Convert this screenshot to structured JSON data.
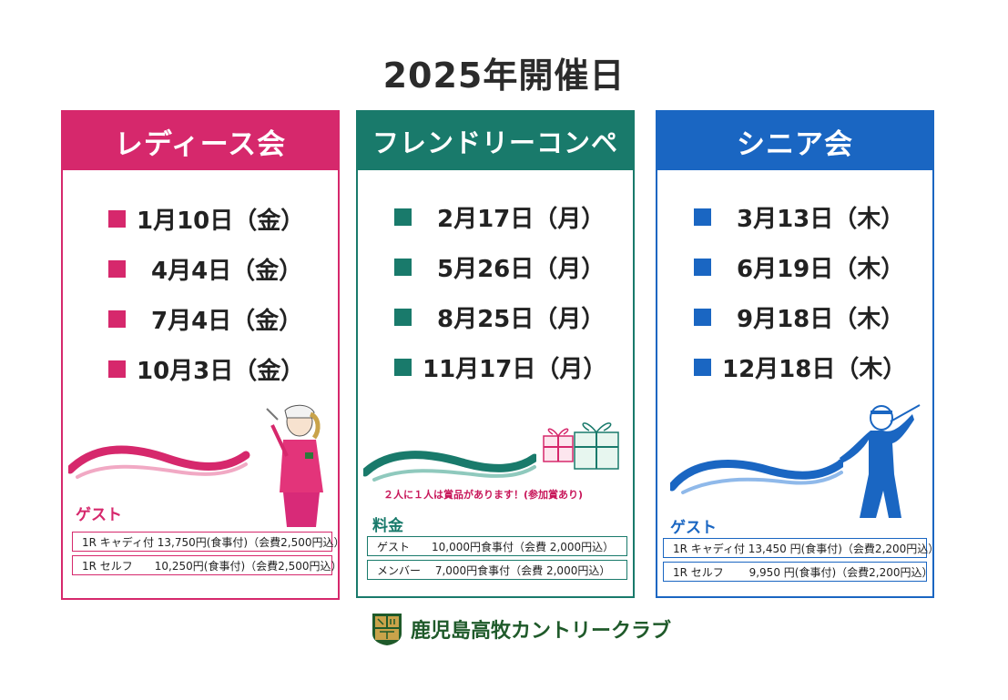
{
  "title": "2025年開催日",
  "colors": {
    "pink": "#d6286c",
    "teal": "#197a6b",
    "blue": "#1a66c2"
  },
  "ladies": {
    "header": "レディース会",
    "dates": [
      "1月10日（金）",
      "4月4日（金）",
      "7月4日（金）",
      "10月3日（金）"
    ],
    "guest_label": "ゲスト",
    "fees": [
      "1R キャディ付 13,750円(食事付)（会費2,500円込）",
      "1R セルフ　　10,250円(食事付)（会費2,500円込）"
    ]
  },
  "friendly": {
    "header": "フレンドリーコンペ",
    "dates": [
      "2月17日（月）",
      "5月26日（月）",
      "8月25日（月）",
      "11月17日（月）"
    ],
    "prize_note": "２人に１人は賞品があります！(参加賞あり)",
    "fee_label": "料金",
    "fees": [
      "ゲスト　　10,000円食事付（会費 2,000円込）",
      "メンバー　 7,000円食事付（会費 2,000円込）"
    ]
  },
  "senior": {
    "header": "シニア会",
    "dates": [
      "3月13日（木）",
      "6月19日（木）",
      "9月18日（木）",
      "12月18日（木）"
    ],
    "guest_label": "ゲスト",
    "fees": [
      "1R キャディ付 13,450 円(食事付)（会費2,200円込）",
      "1R セルフ　　 9,950 円(食事付)（会費2,200円込）"
    ]
  },
  "footer": {
    "club_name": "鹿児島高牧カントリークラブ"
  }
}
